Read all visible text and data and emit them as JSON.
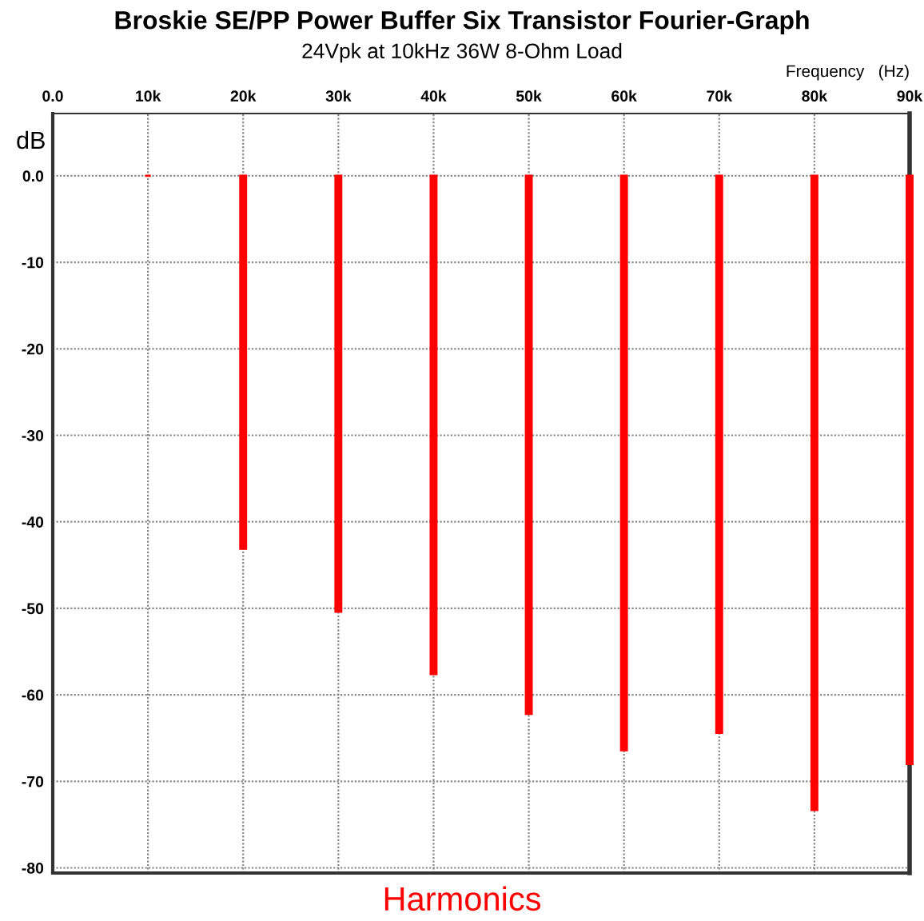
{
  "chart_data": {
    "type": "bar",
    "title": "Broskie SE/PP Power Buffer Six Transistor Fourier-Graph",
    "subtitle": "24Vpk at 10kHz 36W 8-Ohm Load",
    "xlabel": "Frequency   (Hz)",
    "ylabel": "dB",
    "annotations": [
      "Harmonics"
    ],
    "x": [
      10000,
      20000,
      30000,
      40000,
      50000,
      60000,
      70000,
      80000,
      90000
    ],
    "values": [
      0,
      -43.1,
      -50.4,
      -57.6,
      -62.2,
      -66.4,
      -64.4,
      -73.3,
      -68.0
    ],
    "color": "#ff0000",
    "xlim": [
      0,
      90000
    ],
    "xticks": [
      {
        "value": 0,
        "label": "0.0"
      },
      {
        "value": 10000,
        "label": "10k"
      },
      {
        "value": 20000,
        "label": "20k"
      },
      {
        "value": 30000,
        "label": "30k"
      },
      {
        "value": 40000,
        "label": "40k"
      },
      {
        "value": 50000,
        "label": "50k"
      },
      {
        "value": 60000,
        "label": "60k"
      },
      {
        "value": 70000,
        "label": "70k"
      },
      {
        "value": 80000,
        "label": "80k"
      },
      {
        "value": 90000,
        "label": "90k"
      }
    ],
    "ylim": [
      -80.6,
      7.2
    ],
    "yticks": [
      {
        "value": 0,
        "label": "0.0"
      },
      -10,
      -20,
      -30,
      -40,
      -50,
      -60,
      -70,
      -80
    ],
    "grid": true
  }
}
